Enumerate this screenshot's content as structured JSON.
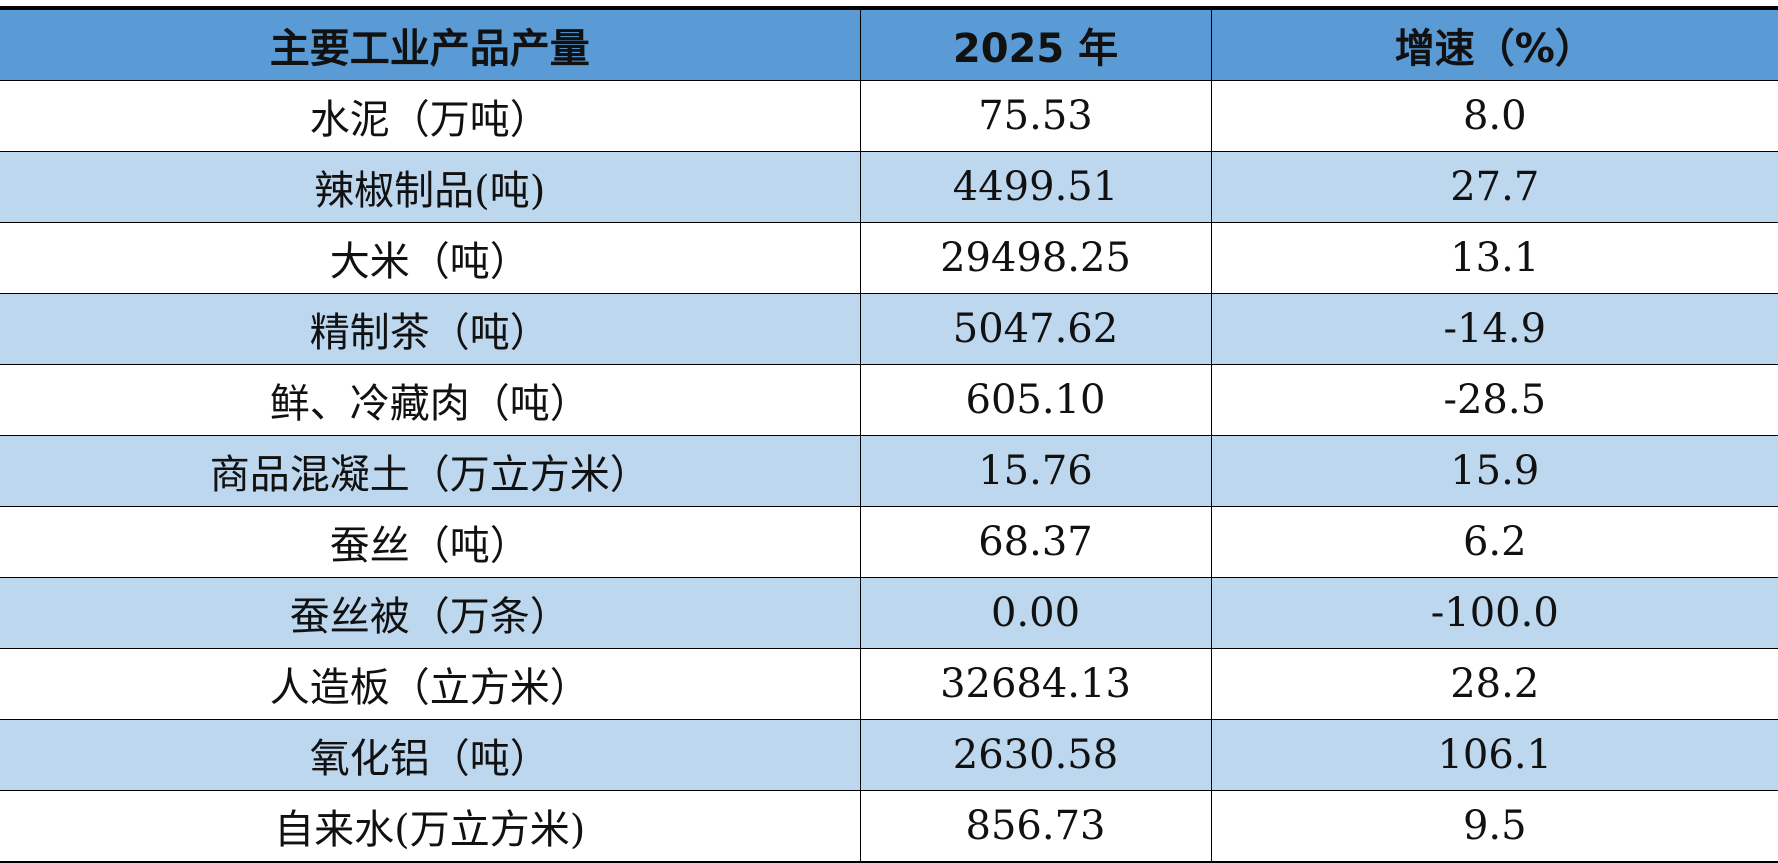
{
  "table": {
    "header": [
      "主要工业产品产量",
      "2025 年",
      "增速（%）"
    ],
    "rows": [
      [
        "水泥（万吨）",
        "75.53",
        "8.0"
      ],
      [
        "辣椒制品(吨)",
        "4499.51",
        "27.7"
      ],
      [
        "大米（吨）",
        "29498.25",
        "13.1"
      ],
      [
        "精制茶（吨）",
        "5047.62",
        "-14.9"
      ],
      [
        "鲜、冷藏肉（吨）",
        "605.10",
        "-28.5"
      ],
      [
        "商品混凝土（万立方米）",
        "15.76",
        "15.9"
      ],
      [
        "蚕丝（吨）",
        "68.37",
        "6.2"
      ],
      [
        "蚕丝被（万条）",
        "0.00",
        "-100.0"
      ],
      [
        "人造板（立方米）",
        "32684.13",
        "28.2"
      ],
      [
        "氧化铝（吨）",
        "2630.58",
        "106.1"
      ],
      [
        "自来水(万立方米)",
        "856.73",
        "9.5"
      ]
    ]
  }
}
